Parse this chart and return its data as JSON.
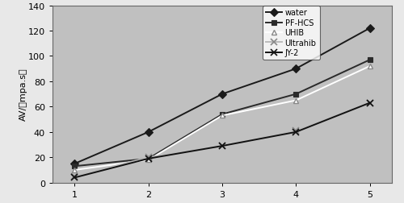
{
  "x": [
    1,
    2,
    3,
    4,
    5
  ],
  "series": {
    "water": [
      15,
      40,
      70,
      90,
      122
    ],
    "PF-HCS": [
      13,
      19,
      54,
      70,
      97
    ],
    "UHIB": [
      10,
      18,
      53,
      65,
      92
    ],
    "Ultrahib": [
      5,
      20,
      29,
      41,
      63
    ],
    "JY-2": [
      4,
      19,
      29,
      40,
      63
    ]
  },
  "colors": {
    "water": "#1a1a1a",
    "PF-HCS": "#2a2a2a",
    "UHIB": "#ffffff",
    "Ultrahib": "#bbbbbb",
    "JY-2": "#111111"
  },
  "marker_edge_colors": {
    "water": "#1a1a1a",
    "PF-HCS": "#2a2a2a",
    "UHIB": "#888888",
    "Ultrahib": "#888888",
    "JY-2": "#111111"
  },
  "markers": {
    "water": "D",
    "PF-HCS": "s",
    "UHIB": "^",
    "Ultrahib": "x",
    "JY-2": "x"
  },
  "ylabel": "AV/（mpa.s）",
  "ylim": [
    0,
    140
  ],
  "xlim": [
    0.7,
    5.3
  ],
  "yticks": [
    0,
    20,
    40,
    60,
    80,
    100,
    120,
    140
  ],
  "xticks": [
    1,
    2,
    3,
    4,
    5
  ],
  "plot_bg_color": "#c0c0c0",
  "fig_bg_color": "#e8e8e8",
  "legend_order": [
    "water",
    "PF-HCS",
    "UHIB",
    "Ultrahib",
    "JY-2"
  ],
  "legend_labels": [
    "water",
    "PF-HCS",
    "UHIB",
    "Ultrahib",
    "JY-2"
  ]
}
